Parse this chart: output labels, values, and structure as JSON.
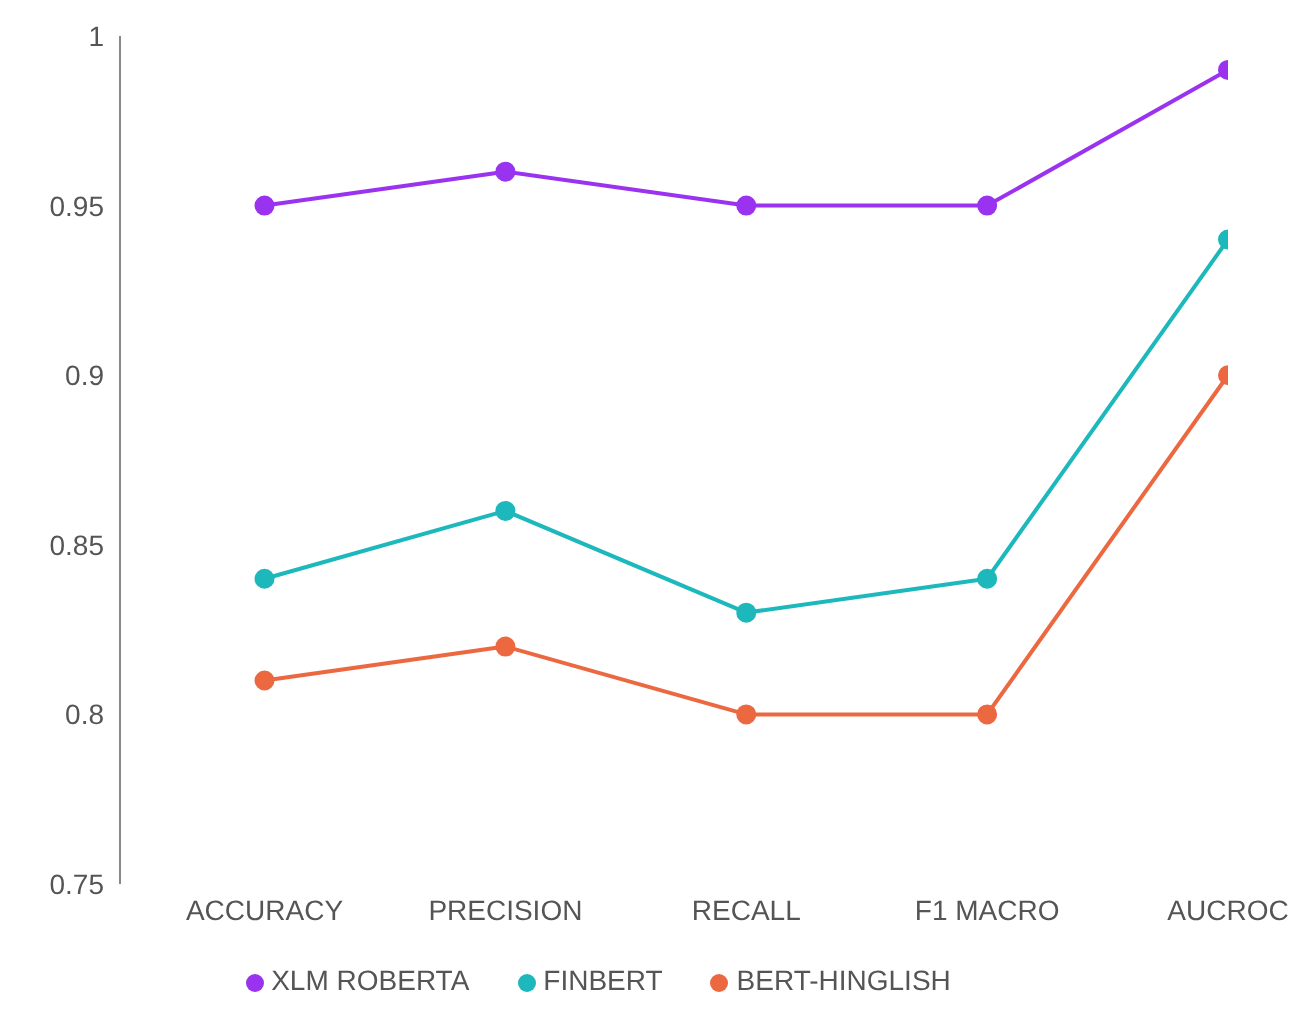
{
  "chart_data": {
    "type": "line",
    "categories": [
      "ACCURACY",
      "PRECISION",
      "RECALL",
      "F1 MACRO",
      "AUCROC"
    ],
    "series": [
      {
        "name": "XLM ROBERTA",
        "color": "#9a33f0",
        "values": [
          0.95,
          0.96,
          0.95,
          0.95,
          0.99
        ]
      },
      {
        "name": "FINBERT",
        "color": "#1db8bc",
        "values": [
          0.84,
          0.86,
          0.83,
          0.84,
          0.94
        ]
      },
      {
        "name": "BERT-HINGLISH",
        "color": "#ec6840",
        "values": [
          0.81,
          0.82,
          0.8,
          0.8,
          0.9
        ]
      }
    ],
    "ylim": [
      0.75,
      1
    ],
    "yticks": [
      0.75,
      0.8,
      0.85,
      0.9,
      0.95,
      {
        "value": 1,
        "label": "1"
      }
    ],
    "grid": false,
    "legend": "bottom",
    "marker": "circle",
    "line_style": "solid"
  }
}
